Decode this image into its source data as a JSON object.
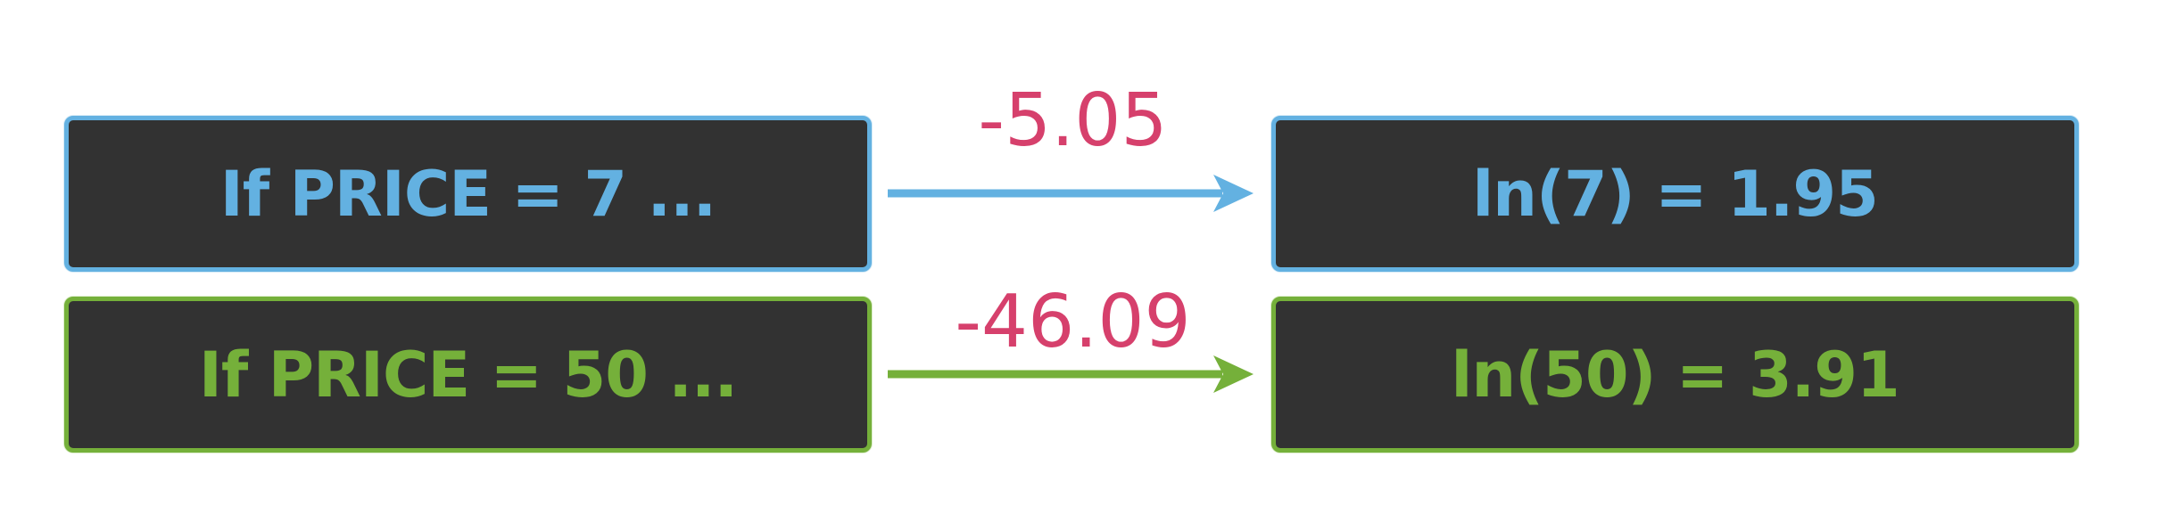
{
  "colors": {
    "blue": "#63b1e1",
    "green": "#75b03a",
    "effect_red": "#d6406c",
    "box_fill": "#323232"
  },
  "rows": [
    {
      "condition": "If PRICE = 7 ...",
      "effect": "-5.05",
      "result": "ln(7) = 1.95"
    },
    {
      "condition": "If PRICE = 50 ...",
      "effect": "-46.09",
      "result": "ln(50) = 3.91"
    }
  ]
}
